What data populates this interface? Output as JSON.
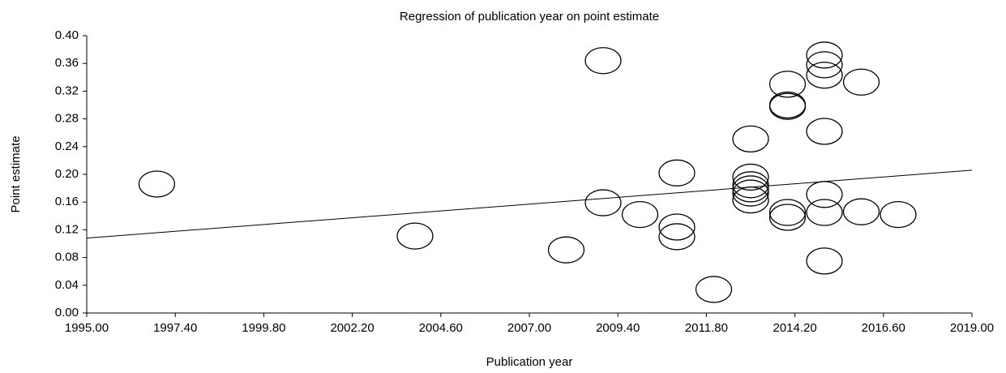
{
  "chart_data": {
    "type": "scatter",
    "title": "Regression of publication year on point estimate",
    "x_label": "Publication year",
    "y_label": "Point estimate",
    "x": [
      1996.9,
      2003.9,
      2008,
      2009,
      2009,
      2010,
      2011,
      2011,
      2011,
      2012,
      2013,
      2013,
      2013,
      2013,
      2013,
      2013,
      2014,
      2014,
      2014,
      2014,
      2014,
      2015,
      2015,
      2015,
      2015,
      2015,
      2015,
      2015,
      2016,
      2016,
      2017
    ],
    "values": [
      0.186,
      0.111,
      0.091,
      0.364,
      0.159,
      0.142,
      0.202,
      0.124,
      0.11,
      0.034,
      0.251,
      0.196,
      0.185,
      0.179,
      0.173,
      0.163,
      0.33,
      0.3,
      0.298,
      0.145,
      0.138,
      0.372,
      0.358,
      0.343,
      0.262,
      0.171,
      0.145,
      0.075,
      0.333,
      0.146,
      0.142
    ],
    "color": "#000000",
    "regression": {
      "x": [
        1995,
        2019
      ],
      "values": [
        0.108,
        0.206
      ]
    },
    "xlim": [
      1995,
      2019
    ],
    "ylim": [
      0,
      0.4
    ],
    "xticks": [
      {
        "value": 1995,
        "label": "1995.00"
      },
      {
        "value": 1997.4,
        "label": "1997.40"
      },
      {
        "value": 1999.8,
        "label": "1999.80"
      },
      {
        "value": 2002.2,
        "label": "2002.20"
      },
      {
        "value": 2004.6,
        "label": "2004.60"
      },
      {
        "value": 2007,
        "label": "2007.00"
      },
      {
        "value": 2009.4,
        "label": "2009.40"
      },
      {
        "value": 2011.8,
        "label": "2011.80"
      },
      {
        "value": 2014.2,
        "label": "2014.20"
      },
      {
        "value": 2016.6,
        "label": "2016.60"
      },
      {
        "value": 2019,
        "label": "2019.00"
      }
    ],
    "yticks": [
      {
        "value": 0,
        "label": "0.00"
      },
      {
        "value": 0.04,
        "label": "0.04"
      },
      {
        "value": 0.08,
        "label": "0.08"
      },
      {
        "value": 0.12,
        "label": "0.12"
      },
      {
        "value": 0.16,
        "label": "0.16"
      },
      {
        "value": 0.2,
        "label": "0.20"
      },
      {
        "value": 0.24,
        "label": "0.24"
      },
      {
        "value": 0.28,
        "label": "0.28"
      },
      {
        "value": 0.32,
        "label": "0.32"
      },
      {
        "value": 0.36,
        "label": "0.36"
      },
      {
        "value": 0.4,
        "label": "0.40"
      }
    ]
  }
}
